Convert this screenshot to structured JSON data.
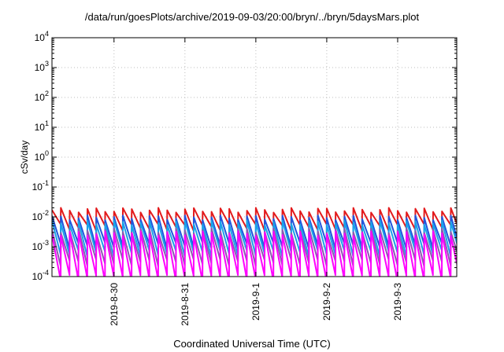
{
  "chart_data": {
    "type": "line",
    "title": "/data/run/goesPlots/archive/2019-09-03/20:00/bryn/../bryn/5daysMars.plot",
    "xlabel": "Coordinated Universal Time (UTC)",
    "ylabel": "cSv/day",
    "yscale": "log",
    "ylim": [
      0.0001,
      10000
    ],
    "y_ticks": [
      {
        "base": "10",
        "exp": "4"
      },
      {
        "base": "10",
        "exp": "3"
      },
      {
        "base": "10",
        "exp": "2"
      },
      {
        "base": "10",
        "exp": "1"
      },
      {
        "base": "10",
        "exp": "0"
      },
      {
        "base": "10",
        "exp": "-1"
      },
      {
        "base": "10",
        "exp": "-2"
      },
      {
        "base": "10",
        "exp": "-3"
      },
      {
        "base": "10",
        "exp": "-4"
      }
    ],
    "x_range_days": [
      "2019-08-29 03:00",
      "2019-09-03 20:00"
    ],
    "x_ticks": [
      "2019-8-30",
      "2019-8-31",
      "2019-9-1",
      "2019-9-2",
      "2019-9-3"
    ],
    "grid": true,
    "legend": "none",
    "sawtooth_period_hours": 3,
    "series": [
      {
        "color": "#e31a1c",
        "peak": 0.017,
        "trough": 0.0045
      },
      {
        "color": "#2255dd",
        "peak": 0.0095,
        "trough": 0.0011
      },
      {
        "color": "#1aa3e8",
        "peak": 0.0065,
        "trough": 0.0006
      },
      {
        "color": "#8b5bb0",
        "peak": 0.0035,
        "trough": 0.0003
      },
      {
        "color": "#ff00ff",
        "peak": 0.0028,
        "trough": 9e-05
      }
    ]
  }
}
